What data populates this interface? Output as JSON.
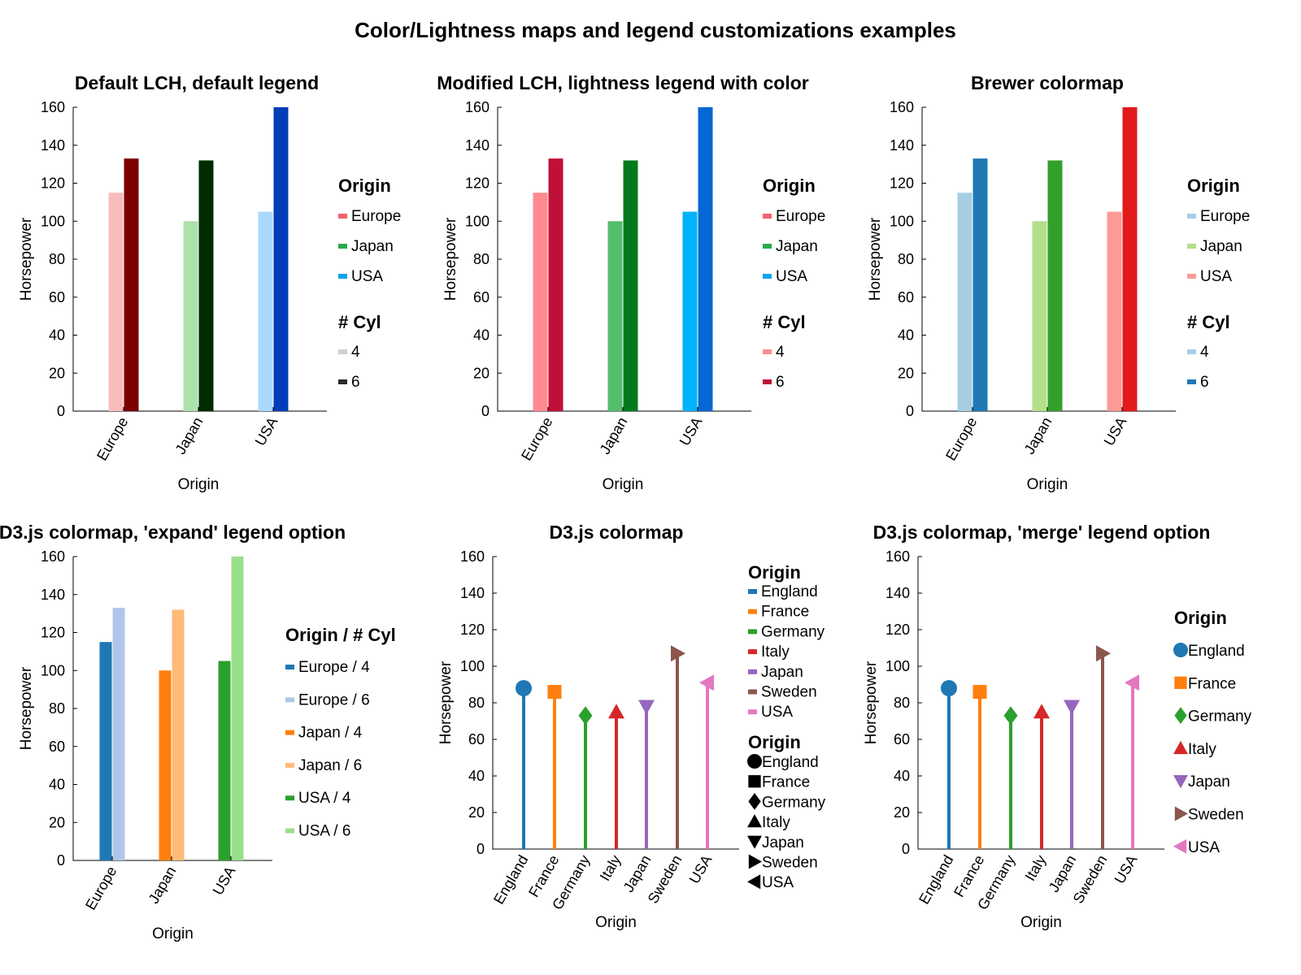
{
  "figure": {
    "title": "Color/Lightness maps and legend customizations examples"
  },
  "chart_data": [
    {
      "id": "p1",
      "type": "bar",
      "title": "Default LCH, default legend",
      "xlabel": "Origin",
      "ylabel": "Horsepower",
      "ylim": [
        0,
        160
      ],
      "yticks": [
        0,
        20,
        40,
        60,
        80,
        100,
        120,
        140,
        160
      ],
      "categories": [
        "Europe",
        "Japan",
        "USA"
      ],
      "series": [
        {
          "name": "4",
          "values": [
            115,
            100,
            105
          ],
          "colors": [
            "#f9bcbc",
            "#ade1ac",
            "#aad8fc"
          ]
        },
        {
          "name": "6",
          "values": [
            133,
            132,
            160
          ],
          "colors": [
            "#7c0000",
            "#002c00",
            "#003db7"
          ]
        }
      ],
      "legend": [
        {
          "heading": "Origin",
          "items": [
            {
              "label": "Europe",
              "color": "#f0636f",
              "marker": "bar"
            },
            {
              "label": "Japan",
              "color": "#27ab4d",
              "marker": "bar"
            },
            {
              "label": "USA",
              "color": "#10a3f0",
              "marker": "bar"
            }
          ]
        },
        {
          "heading": "# Cyl",
          "items": [
            {
              "label": "4",
              "color": "#cfcfcf",
              "marker": "bar"
            },
            {
              "label": "6",
              "color": "#2a2a2a",
              "marker": "bar"
            }
          ]
        }
      ]
    },
    {
      "id": "p2",
      "type": "bar",
      "title": "Modified LCH, lightness legend with color",
      "xlabel": "Origin",
      "ylabel": "Horsepower",
      "ylim": [
        0,
        160
      ],
      "yticks": [
        0,
        20,
        40,
        60,
        80,
        100,
        120,
        140,
        160
      ],
      "categories": [
        "Europe",
        "Japan",
        "USA"
      ],
      "series": [
        {
          "name": "4",
          "values": [
            115,
            100,
            105
          ],
          "colors": [
            "#ff8a8f",
            "#53be6c",
            "#01b2fa"
          ]
        },
        {
          "name": "6",
          "values": [
            133,
            132,
            160
          ],
          "colors": [
            "#bf1037",
            "#027a1c",
            "#0467d4"
          ]
        }
      ],
      "legend": [
        {
          "heading": "Origin",
          "items": [
            {
              "label": "Europe",
              "color": "#f0636f",
              "marker": "bar"
            },
            {
              "label": "Japan",
              "color": "#27ab4d",
              "marker": "bar"
            },
            {
              "label": "USA",
              "color": "#10a3f0",
              "marker": "bar"
            }
          ]
        },
        {
          "heading": "# Cyl",
          "items": [
            {
              "label": "4",
              "color": "#ff8a8f",
              "marker": "bar"
            },
            {
              "label": "6",
              "color": "#bf1037",
              "marker": "bar"
            }
          ]
        }
      ]
    },
    {
      "id": "p3",
      "type": "bar",
      "title": "Brewer colormap",
      "xlabel": "Origin",
      "ylabel": "Horsepower",
      "ylim": [
        0,
        160
      ],
      "yticks": [
        0,
        20,
        40,
        60,
        80,
        100,
        120,
        140,
        160
      ],
      "categories": [
        "Europe",
        "Japan",
        "USA"
      ],
      "series": [
        {
          "name": "4",
          "values": [
            115,
            100,
            105
          ],
          "colors": [
            "#a6cee3",
            "#b2df8a",
            "#fb9a99"
          ]
        },
        {
          "name": "6",
          "values": [
            133,
            132,
            160
          ],
          "colors": [
            "#1f78b4",
            "#33a02c",
            "#e31a1c"
          ]
        }
      ],
      "legend": [
        {
          "heading": "Origin",
          "items": [
            {
              "label": "Europe",
              "color": "#a6cee3",
              "marker": "bar"
            },
            {
              "label": "Japan",
              "color": "#b2df8a",
              "marker": "bar"
            },
            {
              "label": "USA",
              "color": "#fb9a99",
              "marker": "bar"
            }
          ]
        },
        {
          "heading": "# Cyl",
          "items": [
            {
              "label": "4",
              "color": "#a6cee3",
              "marker": "bar"
            },
            {
              "label": "6",
              "color": "#1f78b4",
              "marker": "bar"
            }
          ]
        }
      ]
    },
    {
      "id": "p4",
      "type": "bar",
      "title": "D3.js colormap, 'expand' legend option",
      "xlabel": "Origin",
      "ylabel": "Horsepower",
      "ylim": [
        0,
        160
      ],
      "yticks": [
        0,
        20,
        40,
        60,
        80,
        100,
        120,
        140,
        160
      ],
      "categories": [
        "Europe",
        "Japan",
        "USA"
      ],
      "series": [
        {
          "name": "4",
          "values": [
            115,
            100,
            105
          ],
          "colors": [
            "#1f77b4",
            "#ff7f0e",
            "#2ca02c"
          ]
        },
        {
          "name": "6",
          "values": [
            133,
            132,
            160
          ],
          "colors": [
            "#aec7e8",
            "#ffbb78",
            "#98df8a"
          ]
        }
      ],
      "legend": [
        {
          "heading": "Origin / # Cyl",
          "items": [
            {
              "label": "Europe / 4",
              "color": "#1f77b4",
              "marker": "bar"
            },
            {
              "label": "Europe / 6",
              "color": "#aec7e8",
              "marker": "bar"
            },
            {
              "label": "Japan / 4",
              "color": "#ff7f0e",
              "marker": "bar"
            },
            {
              "label": "Japan / 6",
              "color": "#ffbb78",
              "marker": "bar"
            },
            {
              "label": "USA / 4",
              "color": "#2ca02c",
              "marker": "bar"
            },
            {
              "label": "USA / 6",
              "color": "#98df8a",
              "marker": "bar"
            }
          ]
        }
      ]
    },
    {
      "id": "p5",
      "type": "scatter",
      "title": "D3.js colormap",
      "xlabel": "Origin",
      "ylabel": "Horsepower",
      "ylim": [
        0,
        160
      ],
      "yticks": [
        0,
        20,
        40,
        60,
        80,
        100,
        120,
        140,
        160
      ],
      "categories": [
        "England",
        "France",
        "Germany",
        "Italy",
        "Japan",
        "Sweden",
        "USA"
      ],
      "values": [
        88,
        86,
        73,
        75,
        78,
        107,
        91
      ],
      "colors": [
        "#1f77b4",
        "#ff7f0e",
        "#2ca02c",
        "#d62728",
        "#9467bd",
        "#8c564b",
        "#e377c2"
      ],
      "markers": [
        "circle",
        "square",
        "diamond",
        "triangle-up",
        "triangle-down",
        "triangle-right",
        "triangle-left"
      ],
      "legend": [
        {
          "heading": "Origin",
          "items": [
            {
              "label": "England",
              "color": "#1f77b4",
              "marker": "bar"
            },
            {
              "label": "France",
              "color": "#ff7f0e",
              "marker": "bar"
            },
            {
              "label": "Germany",
              "color": "#2ca02c",
              "marker": "bar"
            },
            {
              "label": "Italy",
              "color": "#d62728",
              "marker": "bar"
            },
            {
              "label": "Japan",
              "color": "#9467bd",
              "marker": "bar"
            },
            {
              "label": "Sweden",
              "color": "#8c564b",
              "marker": "bar"
            },
            {
              "label": "USA",
              "color": "#e377c2",
              "marker": "bar"
            }
          ]
        },
        {
          "heading": "Origin",
          "items": [
            {
              "label": "England",
              "color": "#000000",
              "marker": "circle"
            },
            {
              "label": "France",
              "color": "#000000",
              "marker": "square"
            },
            {
              "label": "Germany",
              "color": "#000000",
              "marker": "diamond"
            },
            {
              "label": "Italy",
              "color": "#000000",
              "marker": "triangle-up"
            },
            {
              "label": "Japan",
              "color": "#000000",
              "marker": "triangle-down"
            },
            {
              "label": "Sweden",
              "color": "#000000",
              "marker": "triangle-right"
            },
            {
              "label": "USA",
              "color": "#000000",
              "marker": "triangle-left"
            }
          ]
        }
      ]
    },
    {
      "id": "p6",
      "type": "scatter",
      "title": "D3.js colormap, 'merge' legend option",
      "xlabel": "Origin",
      "ylabel": "Horsepower",
      "ylim": [
        0,
        160
      ],
      "yticks": [
        0,
        20,
        40,
        60,
        80,
        100,
        120,
        140,
        160
      ],
      "categories": [
        "England",
        "France",
        "Germany",
        "Italy",
        "Japan",
        "Sweden",
        "USA"
      ],
      "values": [
        88,
        86,
        73,
        75,
        78,
        107,
        91
      ],
      "colors": [
        "#1f77b4",
        "#ff7f0e",
        "#2ca02c",
        "#d62728",
        "#9467bd",
        "#8c564b",
        "#e377c2"
      ],
      "markers": [
        "circle",
        "square",
        "diamond",
        "triangle-up",
        "triangle-down",
        "triangle-right",
        "triangle-left"
      ],
      "legend": [
        {
          "heading": "Origin",
          "items": [
            {
              "label": "England",
              "color": "#1f77b4",
              "marker": "circle"
            },
            {
              "label": "France",
              "color": "#ff7f0e",
              "marker": "square"
            },
            {
              "label": "Germany",
              "color": "#2ca02c",
              "marker": "diamond"
            },
            {
              "label": "Italy",
              "color": "#d62728",
              "marker": "triangle-up"
            },
            {
              "label": "Japan",
              "color": "#9467bd",
              "marker": "triangle-down"
            },
            {
              "label": "Sweden",
              "color": "#8c564b",
              "marker": "triangle-right"
            },
            {
              "label": "USA",
              "color": "#e377c2",
              "marker": "triangle-left"
            }
          ]
        }
      ]
    }
  ]
}
